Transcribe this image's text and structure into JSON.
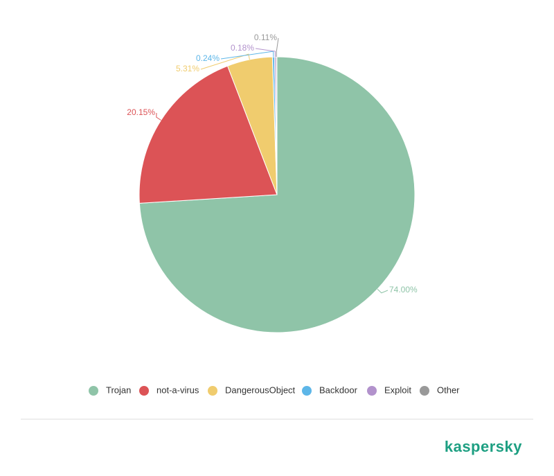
{
  "chart_data": {
    "type": "pie",
    "categories": [
      "Trojan",
      "not-a-virus",
      "DangerousObject",
      "Backdoor",
      "Exploit",
      "Other"
    ],
    "values": [
      74.0,
      20.15,
      5.31,
      0.24,
      0.18,
      0.11
    ],
    "value_labels": [
      "74.00%",
      "20.15%",
      "5.31%",
      "0.24%",
      "0.18%",
      "0.11%"
    ],
    "colors": [
      "#8fc4a8",
      "#dc5356",
      "#f0cc6e",
      "#5db6e8",
      "#b292cc",
      "#999999"
    ],
    "legend": "bottom"
  },
  "brand": "kaspersky"
}
